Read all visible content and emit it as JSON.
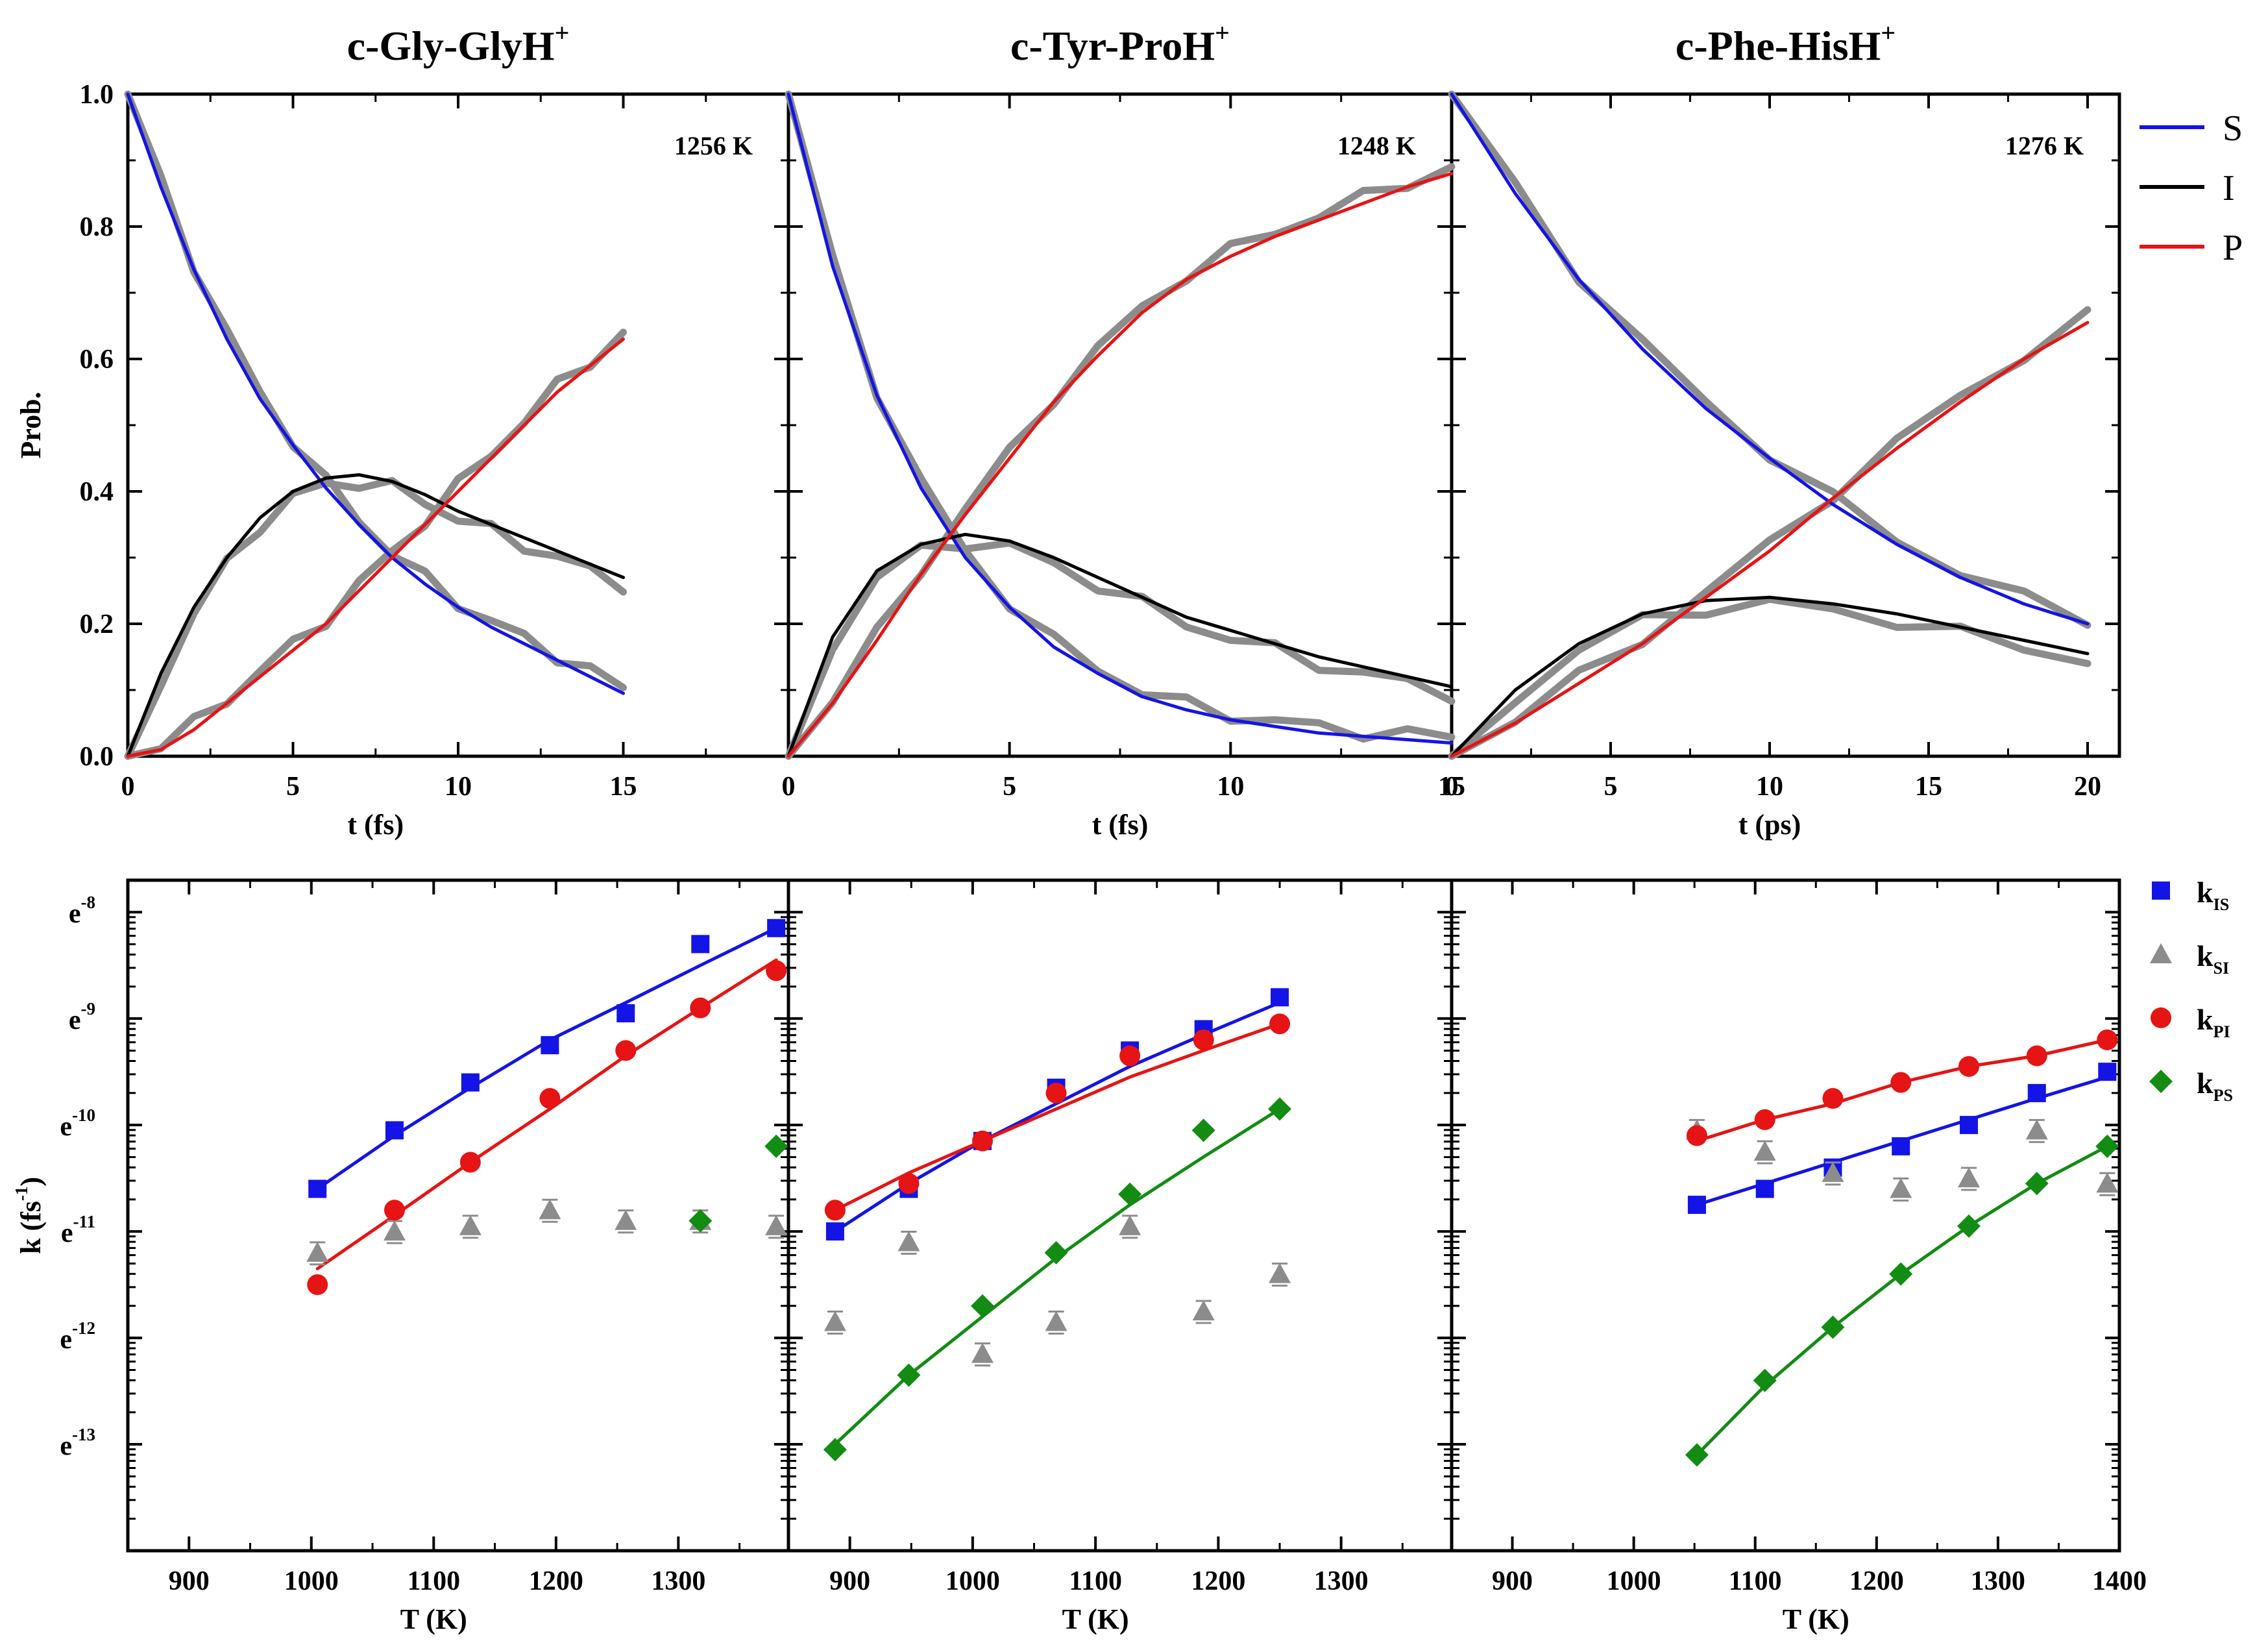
{
  "titles": [
    {
      "base": "c-Gly-GlyH",
      "sup": "+"
    },
    {
      "base": "c-Tyr-ProH",
      "sup": "+"
    },
    {
      "base": "c-Phe-HisH",
      "sup": "+"
    }
  ],
  "top_ylabel": "Prob.",
  "bottom_ylabel": {
    "base": "k (fs",
    "sup": "-1",
    "close": ")"
  },
  "bottom_yticks_base": "e",
  "legend_top": [
    {
      "label": "S",
      "color": "#1414e6"
    },
    {
      "label": "I",
      "color": "#000000"
    },
    {
      "label": "P",
      "color": "#e61414"
    }
  ],
  "legend_bottom": [
    {
      "base": "k",
      "sub": "IS",
      "color": "#1414e6",
      "marker": "square"
    },
    {
      "base": "k",
      "sub": "SI",
      "color": "#8c8c8c",
      "marker": "triangle"
    },
    {
      "base": "k",
      "sub": "PI",
      "color": "#e61414",
      "marker": "circle"
    },
    {
      "base": "k",
      "sub": "PS",
      "color": "#138c13",
      "marker": "diamond"
    }
  ],
  "colors": {
    "S": "#1414e6",
    "I": "#000000",
    "P": "#e61414",
    "sim": "#8c8c8c",
    "kIS": "#1414e6",
    "kSI": "#8c8c8c",
    "kPI": "#e61414",
    "kPS": "#138c13"
  },
  "chart_data": [
    {
      "type": "line",
      "panel": "top-1",
      "title": "c-Gly-GlyH+",
      "annotation": "1256 K",
      "xlabel": "t (fs)",
      "ylabel": "Prob.",
      "xlim": [
        0,
        20
      ],
      "ylim": [
        0,
        1.0
      ],
      "xticks": [
        0,
        5,
        10,
        15
      ],
      "yticks": [
        0.0,
        0.2,
        0.4,
        0.6,
        0.8,
        1.0
      ],
      "x": [
        0,
        1,
        2,
        3,
        4,
        5,
        6,
        7,
        8,
        9,
        10,
        11,
        12,
        13,
        14,
        15
      ],
      "series": [
        {
          "name": "S",
          "values": [
            1.0,
            0.86,
            0.735,
            0.63,
            0.54,
            0.47,
            0.405,
            0.35,
            0.3,
            0.26,
            0.225,
            0.195,
            0.17,
            0.145,
            0.12,
            0.095
          ]
        },
        {
          "name": "I",
          "values": [
            0.0,
            0.125,
            0.225,
            0.3,
            0.36,
            0.4,
            0.42,
            0.425,
            0.415,
            0.395,
            0.37,
            0.35,
            0.33,
            0.31,
            0.29,
            0.27
          ]
        },
        {
          "name": "P",
          "values": [
            0.0,
            0.01,
            0.04,
            0.08,
            0.12,
            0.16,
            0.2,
            0.25,
            0.3,
            0.35,
            0.4,
            0.45,
            0.5,
            0.55,
            0.59,
            0.63
          ]
        }
      ]
    },
    {
      "type": "line",
      "panel": "top-2",
      "title": "c-Tyr-ProH+",
      "annotation": "1248 K",
      "xlabel": "t (fs)",
      "ylabel": "",
      "xlim": [
        0,
        15
      ],
      "ylim": [
        0,
        1.0
      ],
      "xticks": [
        0,
        5,
        10,
        15
      ],
      "yticks": [],
      "x": [
        0,
        1,
        2,
        3,
        4,
        5,
        6,
        7,
        8,
        9,
        10,
        11,
        12,
        13,
        14,
        15
      ],
      "series": [
        {
          "name": "S",
          "values": [
            1.0,
            0.74,
            0.545,
            0.405,
            0.3,
            0.225,
            0.165,
            0.125,
            0.09,
            0.07,
            0.055,
            0.045,
            0.035,
            0.03,
            0.025,
            0.02
          ]
        },
        {
          "name": "I",
          "values": [
            0.0,
            0.18,
            0.28,
            0.32,
            0.335,
            0.325,
            0.3,
            0.27,
            0.24,
            0.21,
            0.19,
            0.17,
            0.15,
            0.135,
            0.12,
            0.105
          ]
        },
        {
          "name": "P",
          "values": [
            0.0,
            0.08,
            0.175,
            0.275,
            0.365,
            0.45,
            0.535,
            0.605,
            0.67,
            0.72,
            0.755,
            0.785,
            0.81,
            0.835,
            0.86,
            0.88
          ]
        }
      ]
    },
    {
      "type": "line",
      "panel": "top-3",
      "title": "c-Phe-HisH+",
      "annotation": "1276 K",
      "xlabel": "t (ps)",
      "ylabel": "",
      "xlim": [
        0,
        21
      ],
      "ylim": [
        0,
        1.0
      ],
      "xticks": [
        0,
        5,
        10,
        15,
        20
      ],
      "yticks": [],
      "x": [
        0,
        2,
        4,
        6,
        8,
        10,
        12,
        14,
        16,
        18,
        20
      ],
      "series": [
        {
          "name": "S",
          "values": [
            1.0,
            0.85,
            0.72,
            0.615,
            0.525,
            0.45,
            0.38,
            0.32,
            0.27,
            0.23,
            0.2
          ]
        },
        {
          "name": "I",
          "values": [
            0.0,
            0.1,
            0.17,
            0.215,
            0.235,
            0.24,
            0.23,
            0.215,
            0.195,
            0.175,
            0.155
          ]
        },
        {
          "name": "P",
          "values": [
            0.0,
            0.05,
            0.11,
            0.17,
            0.24,
            0.31,
            0.39,
            0.465,
            0.535,
            0.6,
            0.655
          ]
        }
      ]
    },
    {
      "type": "scatter",
      "panel": "bottom-1",
      "xlabel": "T (K)",
      "ylabel": "k (fs-1)",
      "xlim": [
        850,
        1390
      ],
      "ylim": [
        -14,
        -7.7
      ],
      "y_scale": "natural log (e^n)",
      "xticks": [
        900,
        1000,
        1100,
        1200,
        1300
      ],
      "yticks": [
        -13,
        -12,
        -11,
        -10,
        -9,
        -8
      ],
      "series": [
        {
          "name": "kIS",
          "x": [
            1005,
            1068,
            1130,
            1195,
            1257,
            1318,
            1380
          ],
          "values": [
            -10.6,
            -10.05,
            -9.6,
            -9.25,
            -8.95,
            -8.3,
            -8.15
          ],
          "fit": [
            -10.6,
            -10.1,
            -9.65,
            -9.2,
            -8.85,
            -8.5,
            -8.15
          ]
        },
        {
          "name": "kSI",
          "x": [
            1005,
            1068,
            1130,
            1195,
            1257,
            1318,
            1380
          ],
          "values": [
            -11.2,
            -11.0,
            -10.95,
            -10.8,
            -10.9,
            -10.9,
            -10.95
          ]
        },
        {
          "name": "kPI",
          "x": [
            1005,
            1068,
            1130,
            1195,
            1257,
            1318,
            1380
          ],
          "values": [
            -11.5,
            -10.8,
            -10.35,
            -9.75,
            -9.3,
            -8.9,
            -8.55
          ],
          "fit": [
            -11.35,
            -10.85,
            -10.35,
            -9.85,
            -9.35,
            -8.9,
            -8.45
          ]
        },
        {
          "name": "kPS",
          "x": [
            1318,
            1380
          ],
          "values": [
            -10.9,
            -10.2
          ]
        }
      ]
    },
    {
      "type": "scatter",
      "panel": "bottom-2",
      "xlabel": "T (K)",
      "ylabel": "",
      "xlim": [
        850,
        1390
      ],
      "ylim": [
        -14,
        -7.7
      ],
      "y_scale": "natural log (e^n)",
      "xticks": [
        900,
        1000,
        1100,
        1200,
        1300
      ],
      "yticks": [],
      "series": [
        {
          "name": "kIS",
          "x": [
            888,
            948,
            1008,
            1068,
            1128,
            1188,
            1250
          ],
          "values": [
            -11.0,
            -10.6,
            -10.15,
            -9.65,
            -9.3,
            -9.1,
            -8.8
          ],
          "fit": [
            -11.0,
            -10.55,
            -10.15,
            -9.8,
            -9.45,
            -9.15,
            -8.85
          ]
        },
        {
          "name": "kSI",
          "x": [
            888,
            948,
            1008,
            1068,
            1128,
            1188,
            1250
          ],
          "values": [
            -11.85,
            -11.1,
            -12.15,
            -11.85,
            -10.95,
            -11.75,
            -11.4
          ]
        },
        {
          "name": "kPI",
          "x": [
            888,
            948,
            1008,
            1068,
            1128,
            1188,
            1250
          ],
          "values": [
            -10.8,
            -10.55,
            -10.15,
            -9.7,
            -9.35,
            -9.2,
            -9.05
          ],
          "fit": [
            -10.8,
            -10.45,
            -10.15,
            -9.85,
            -9.55,
            -9.3,
            -9.05
          ]
        },
        {
          "name": "kPS",
          "x": [
            888,
            948,
            1008,
            1068,
            1128,
            1188,
            1250
          ],
          "values": [
            -13.05,
            -12.35,
            -11.7,
            -11.2,
            -10.65,
            -10.05,
            -9.85
          ],
          "fit": [
            -13.0,
            -12.35,
            -11.8,
            -11.25,
            -10.75,
            -10.3,
            -9.85
          ]
        }
      ]
    },
    {
      "type": "scatter",
      "panel": "bottom-3",
      "xlabel": "T (K)",
      "ylabel": "",
      "xlim": [
        850,
        1400
      ],
      "ylim": [
        -14,
        -7.7
      ],
      "y_scale": "natural log (e^n)",
      "xticks": [
        900,
        1000,
        1100,
        1200,
        1300,
        1400
      ],
      "yticks": [],
      "series": [
        {
          "name": "kIS",
          "x": [
            1052,
            1108,
            1164,
            1220,
            1276,
            1332,
            1390
          ],
          "values": [
            -10.75,
            -10.6,
            -10.4,
            -10.2,
            -10.0,
            -9.7,
            -9.5
          ],
          "fit": [
            -10.75,
            -10.55,
            -10.35,
            -10.15,
            -9.95,
            -9.75,
            -9.55
          ]
        },
        {
          "name": "kSI",
          "x": [
            1052,
            1108,
            1164,
            1220,
            1276,
            1332,
            1390
          ],
          "values": [
            -10.05,
            -10.25,
            -10.45,
            -10.6,
            -10.5,
            -10.05,
            -10.55
          ]
        },
        {
          "name": "kPI",
          "x": [
            1052,
            1108,
            1164,
            1220,
            1276,
            1332,
            1390
          ],
          "values": [
            -10.1,
            -9.95,
            -9.75,
            -9.6,
            -9.45,
            -9.35,
            -9.2
          ],
          "fit": [
            -10.15,
            -9.95,
            -9.8,
            -9.6,
            -9.45,
            -9.35,
            -9.2
          ]
        },
        {
          "name": "kPS",
          "x": [
            1052,
            1108,
            1164,
            1220,
            1276,
            1332,
            1390
          ],
          "values": [
            -13.1,
            -12.4,
            -11.9,
            -11.4,
            -10.95,
            -10.55,
            -10.2
          ],
          "fit": [
            -13.1,
            -12.45,
            -11.9,
            -11.4,
            -10.95,
            -10.55,
            -10.2
          ]
        }
      ]
    }
  ]
}
